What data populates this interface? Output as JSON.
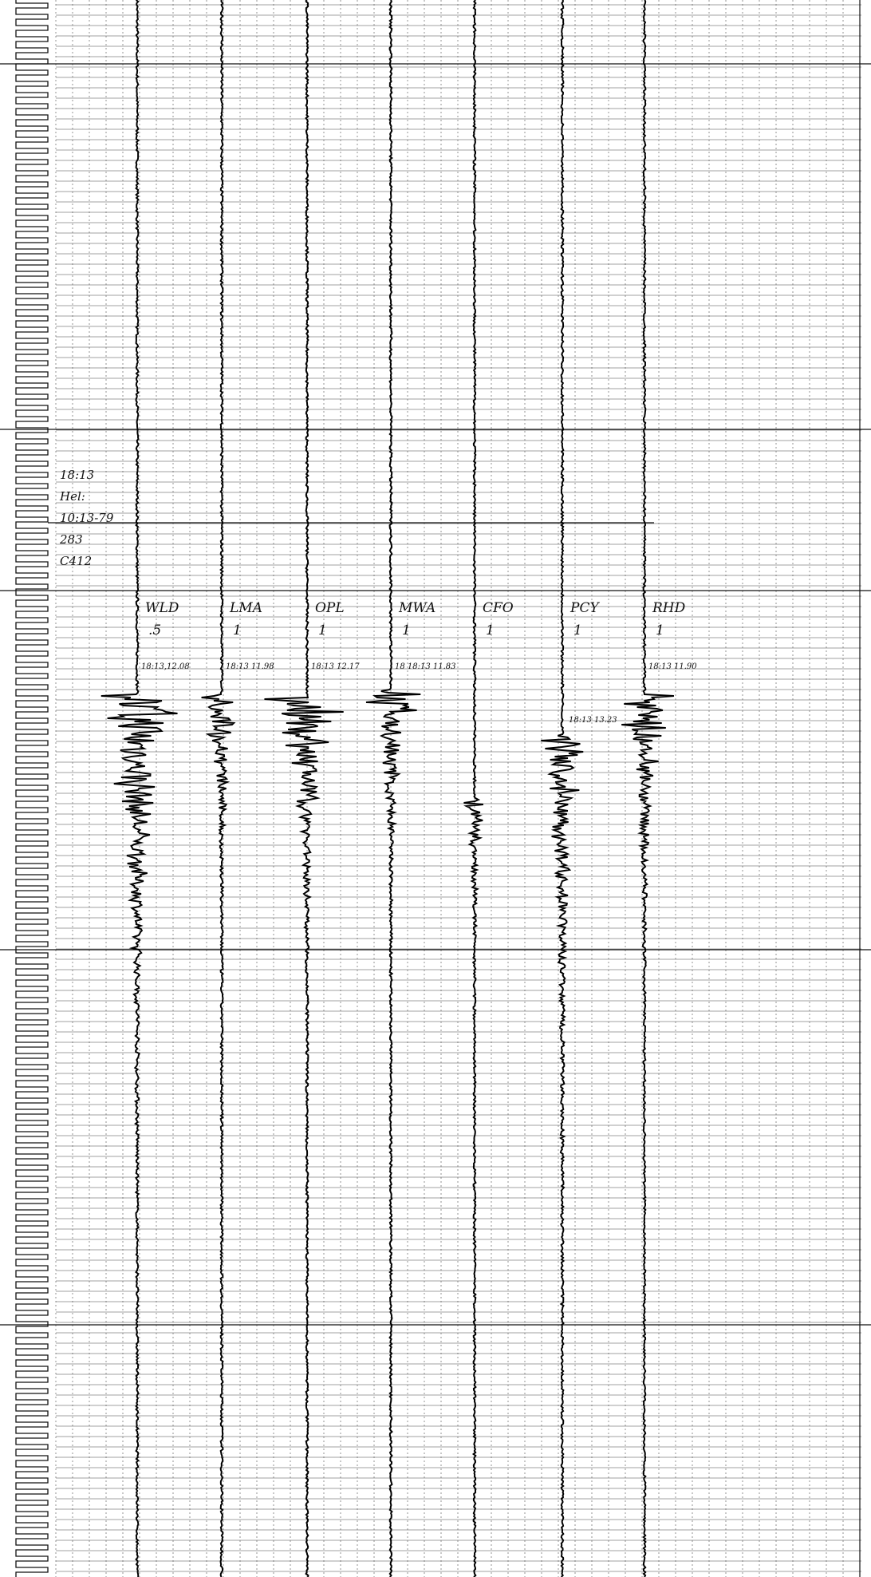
{
  "header_note": [
    "18:13",
    "Hel:",
    "10:13-79",
    "283",
    "C412"
  ],
  "stations": [
    {
      "name": "WLD",
      "gain": ".5",
      "pick_time": "18:13,12.08"
    },
    {
      "name": "LMA",
      "gain": "1",
      "pick_time": "18:13 11.98"
    },
    {
      "name": "OPL",
      "gain": "1",
      "pick_time": "18:13 12.17"
    },
    {
      "name": "MWA",
      "gain": "1",
      "pick_time": "18 18:13 11.83"
    },
    {
      "name": "CFO",
      "gain": "1"
    },
    {
      "name": "PCY",
      "gain": "1",
      "pick_time": "18:13 13.23"
    },
    {
      "name": "RHD",
      "gain": "1",
      "pick_time": "18:13 11.90"
    }
  ]
}
